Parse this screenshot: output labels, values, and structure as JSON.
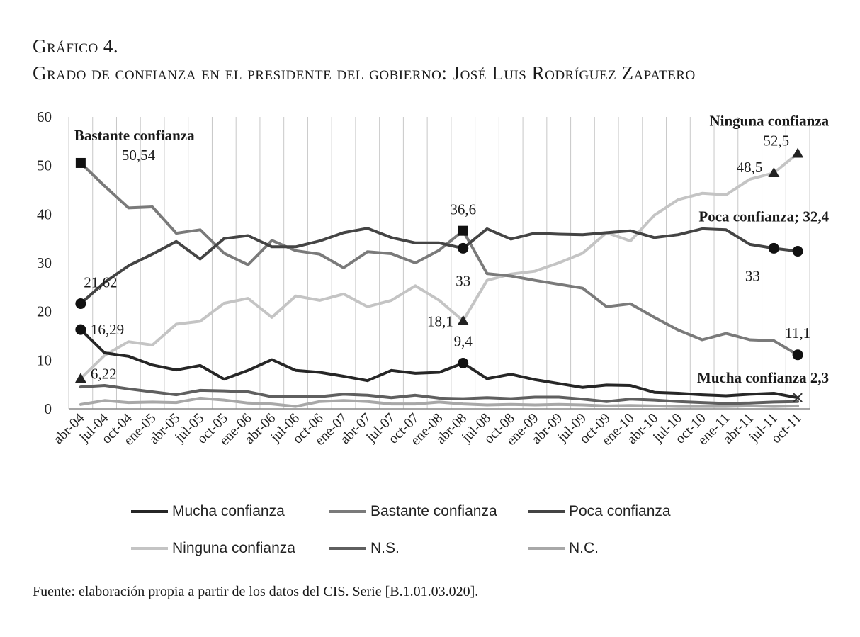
{
  "header": {
    "title_line1": "Gráfico 4.",
    "title_line2": "Grado de confianza en el presidente del gobierno: José Luis Rodríguez Zapatero"
  },
  "source": "Fuente: elaboración propia a partir de los datos del CIS. Serie [B.1.01.03.020].",
  "colors": {
    "mucha": "#262626",
    "bastante": "#7a7a7a",
    "poca": "#444444",
    "ninguna": "#c4c4c4",
    "ns": "#5f5f5f",
    "nc": "#a8a8a8",
    "grid": "#c8c8c8"
  },
  "chart_data": {
    "type": "line",
    "categories": [
      "abr-04",
      "jul-04",
      "oct-04",
      "ene-05",
      "abr-05",
      "jul-05",
      "oct-05",
      "ene-06",
      "abr-06",
      "jul-06",
      "oct-06",
      "ene-07",
      "abr-07",
      "jul-07",
      "oct-07",
      "ene-08",
      "abr-08",
      "jul-08",
      "oct-08",
      "ene-09",
      "abr-09",
      "jul-09",
      "oct-09",
      "ene-10",
      "abr-10",
      "jul-10",
      "oct-10",
      "ene-11",
      "abr-11",
      "jul-11",
      "oct-11"
    ],
    "ylim": [
      0,
      60
    ],
    "yticks": [
      "0",
      "10",
      "20",
      "30",
      "40",
      "50",
      "60"
    ],
    "grid": "vertical",
    "legend_position": "bottom",
    "series": [
      {
        "key": "mucha",
        "name": "Mucha confianza",
        "values": [
          16.29,
          11.5,
          10.8,
          9.0,
          8.0,
          8.9,
          6.1,
          7.9,
          10.1,
          7.9,
          7.5,
          6.7,
          5.8,
          7.9,
          7.3,
          7.5,
          9.4,
          6.2,
          7.1,
          6.0,
          5.2,
          4.4,
          4.9,
          4.8,
          3.4,
          3.2,
          2.9,
          2.7,
          3.0,
          3.2,
          2.3
        ]
      },
      {
        "key": "bastante",
        "name": "Bastante confianza",
        "values": [
          50.54,
          45.8,
          41.3,
          41.5,
          36.1,
          36.8,
          32.0,
          29.6,
          34.6,
          32.5,
          31.8,
          29.0,
          32.3,
          31.9,
          30.0,
          32.6,
          36.6,
          27.8,
          27.3,
          26.4,
          25.6,
          24.8,
          21.0,
          21.6,
          18.8,
          16.2,
          14.2,
          15.5,
          14.2,
          14.0,
          11.1
        ]
      },
      {
        "key": "poca",
        "name": "Poca confianza",
        "values": [
          21.62,
          26.0,
          29.4,
          31.8,
          34.4,
          30.8,
          35.0,
          35.6,
          33.3,
          33.3,
          34.5,
          36.2,
          37.1,
          35.2,
          34.1,
          34.1,
          33.0,
          37.0,
          34.9,
          36.1,
          35.9,
          35.8,
          36.2,
          36.6,
          35.2,
          35.8,
          37.0,
          36.8,
          33.8,
          33.0,
          32.4
        ]
      },
      {
        "key": "ninguna",
        "name": "Ninguna confianza",
        "values": [
          6.22,
          11.0,
          13.8,
          13.1,
          17.4,
          18.0,
          21.7,
          22.7,
          18.8,
          23.2,
          22.3,
          23.6,
          21.0,
          22.3,
          25.3,
          22.3,
          18.1,
          26.4,
          27.7,
          28.3,
          30.0,
          32.0,
          36.2,
          34.5,
          39.8,
          43.0,
          44.3,
          44.0,
          47.2,
          48.5,
          52.5
        ]
      },
      {
        "key": "ns",
        "name": "N.S.",
        "values": [
          4.5,
          4.8,
          4.1,
          3.5,
          2.9,
          3.8,
          3.7,
          3.5,
          2.5,
          2.6,
          2.5,
          3.0,
          2.8,
          2.3,
          2.8,
          2.2,
          2.1,
          2.3,
          2.1,
          2.4,
          2.4,
          2.0,
          1.5,
          2.0,
          1.8,
          1.5,
          1.3,
          1.1,
          1.2,
          1.4,
          1.5
        ]
      },
      {
        "key": "nc",
        "name": "N.C.",
        "values": [
          0.9,
          1.7,
          1.3,
          1.4,
          1.3,
          2.2,
          1.8,
          1.2,
          1.0,
          0.5,
          1.5,
          1.7,
          1.5,
          1.0,
          1.0,
          1.4,
          1.0,
          0.8,
          0.9,
          0.8,
          0.9,
          0.8,
          0.6,
          0.7,
          0.6,
          0.5,
          0.5,
          0.5,
          0.6,
          0.5,
          0.6
        ]
      }
    ],
    "annotations": [
      {
        "series": "bastante",
        "index": 0,
        "label": "Bastante confianza",
        "marker": "square"
      },
      {
        "series": "bastante",
        "index": 0,
        "label": "50,54",
        "marker": "square"
      },
      {
        "series": "bastante",
        "index": 16,
        "label": "36,6",
        "marker": "square"
      },
      {
        "series": "poca",
        "index": 0,
        "label": "21,62",
        "marker": "circle"
      },
      {
        "series": "poca",
        "index": 16,
        "label": "33",
        "marker": "circle"
      },
      {
        "series": "poca",
        "index": 29,
        "label": "33",
        "marker": "circle"
      },
      {
        "series": "poca",
        "index": 30,
        "label": "Poca confianza; 32,4",
        "marker": "circle"
      },
      {
        "series": "mucha",
        "index": 0,
        "label": "16,29",
        "marker": "circle"
      },
      {
        "series": "mucha",
        "index": 16,
        "label": "9,4",
        "marker": "circle"
      },
      {
        "series": "mucha",
        "index": 30,
        "label": "Mucha confianza 2,3",
        "marker": "x"
      },
      {
        "series": "bastante",
        "index": 30,
        "label": "11,1",
        "marker": "circle"
      },
      {
        "series": "ninguna",
        "index": 0,
        "label": "6,22",
        "marker": "triangle"
      },
      {
        "series": "ninguna",
        "index": 16,
        "label": "18,1",
        "marker": "triangle"
      },
      {
        "series": "ninguna",
        "index": 29,
        "label": "48,5",
        "marker": "triangle"
      },
      {
        "series": "ninguna",
        "index": 30,
        "label": "Ninguna confianza",
        "marker": "triangle"
      },
      {
        "series": "ninguna",
        "index": 30,
        "label": "52,5",
        "marker": "triangle"
      }
    ]
  }
}
